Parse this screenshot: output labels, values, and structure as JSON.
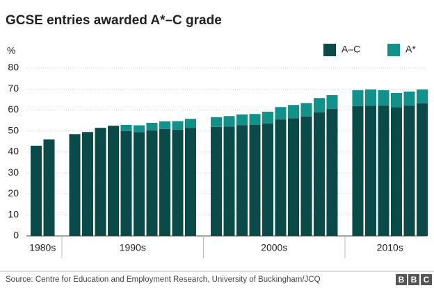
{
  "chart_data": {
    "type": "stacked-bar",
    "title": "GCSE entries awarded A*–C grade",
    "y_label": "%",
    "source": "Source: Centre for Education and Employment Research, University of Buckingham/JCQ",
    "branding": "BBC",
    "groups": [
      {
        "label": "1980s",
        "size": 2
      },
      {
        "label": "1990s",
        "size": 10
      },
      {
        "label": "2000s",
        "size": 10
      },
      {
        "label": "2010s",
        "size": 6
      }
    ],
    "categories": [
      null,
      null,
      null,
      null,
      null,
      null,
      null,
      null,
      null,
      null,
      null,
      null,
      null,
      null,
      null,
      null,
      null,
      null,
      null,
      null,
      null,
      null,
      null,
      null,
      null,
      null,
      null,
      null
    ],
    "series": [
      {
        "name": "A–C",
        "color": "#0a4a48",
        "values": [
          43,
          46,
          48.5,
          49.5,
          51.5,
          52.5,
          50,
          49.5,
          50.3,
          51,
          50.6,
          51.4,
          52,
          52.1,
          52.8,
          53,
          53.6,
          55.5,
          56.1,
          56.9,
          58.9,
          60.5,
          61.9,
          62,
          62.1,
          61.3,
          62.1,
          63.2
        ]
      },
      {
        "name": "A*",
        "color": "#12908a",
        "values": [
          0,
          0,
          0,
          0,
          0,
          0,
          2.9,
          3.2,
          3.6,
          3.6,
          4.1,
          4.4,
          4.6,
          5,
          5.1,
          5.1,
          5.6,
          5.9,
          6.3,
          6.4,
          6.8,
          6.6,
          7.5,
          7.8,
          7.3,
          6.8,
          6.7,
          6.6
        ]
      }
    ],
    "ylim": [
      0,
      80
    ],
    "yticks": [
      0,
      10,
      20,
      30,
      40,
      50,
      60,
      70,
      80
    ],
    "grid": true
  }
}
